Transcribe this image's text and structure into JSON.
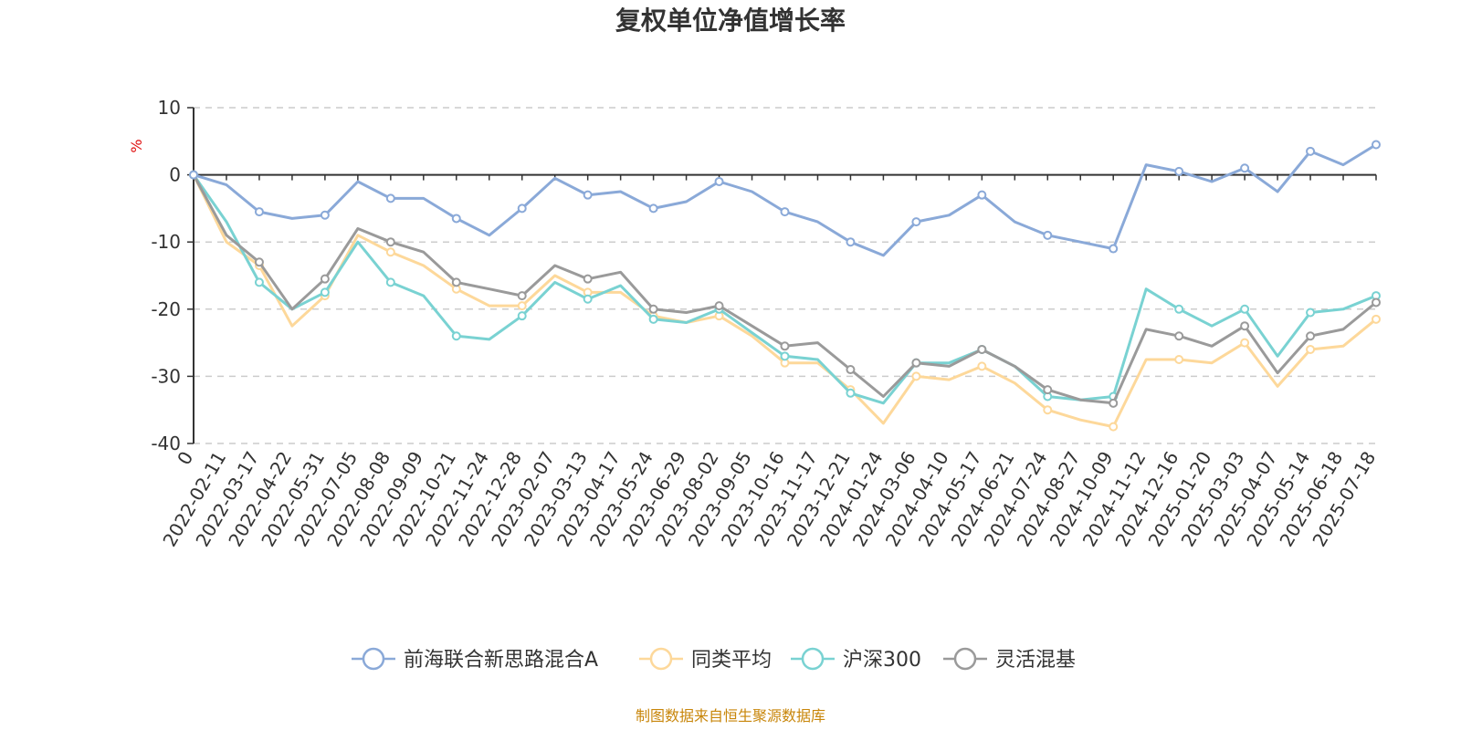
{
  "chart_data": {
    "type": "line",
    "title": "复权单位净值增长率",
    "ylabel": "%",
    "ylim": [
      -40,
      10
    ],
    "yticks": [
      10,
      0,
      -10,
      -20,
      -30,
      -40
    ],
    "grid": true,
    "legend_position": "bottom",
    "x_tick_labels": [
      "0",
      "2022-02-11",
      "2022-03-17",
      "2022-04-22",
      "2022-05-31",
      "2022-07-05",
      "2022-08-08",
      "2022-09-09",
      "2022-10-21",
      "2022-11-24",
      "2022-12-28",
      "2023-02-07",
      "2023-03-13",
      "2023-04-17",
      "2023-05-24",
      "2023-06-29",
      "2023-08-02",
      "2023-09-05",
      "2023-10-16",
      "2023-11-17",
      "2023-12-21",
      "2024-01-24",
      "2024-03-06",
      "2024-04-10",
      "2024-05-17",
      "2024-06-21",
      "2024-07-24",
      "2024-08-27",
      "2024-10-09",
      "2024-11-12",
      "2024-12-16",
      "2025-01-20",
      "2025-03-03",
      "2025-04-07",
      "2025-05-14",
      "2025-06-18",
      "2025-07-18"
    ],
    "series": [
      {
        "name": "前海联合新思路混合A",
        "color": "#8aa9d8",
        "values": [
          0,
          -1.5,
          -5.5,
          -6.5,
          -6,
          -1,
          -3.5,
          -3.5,
          -6.5,
          -9,
          -5,
          -0.5,
          -3,
          -2.5,
          -5,
          -4,
          -1,
          -2.5,
          -5.5,
          -7,
          -10,
          -12,
          -7,
          -6,
          -3,
          -7,
          -9,
          -10,
          -11,
          1.5,
          0.5,
          -1,
          1,
          -2.5,
          3.5,
          1.5,
          4.5
        ]
      },
      {
        "name": "同类平均",
        "color": "#fdd89a",
        "values": [
          0,
          -10,
          -13.5,
          -22.5,
          -18,
          -9,
          -11.5,
          -13.5,
          -17,
          -19.5,
          -19.5,
          -15,
          -17.5,
          -17.5,
          -21,
          -22,
          -21,
          -24,
          -28,
          -28,
          -32,
          -37,
          -30,
          -30.5,
          -28.5,
          -31,
          -35,
          -36.5,
          -37.5,
          -27.5,
          -27.5,
          -28,
          -25,
          -31.5,
          -26,
          -25.5,
          -21.5
        ]
      },
      {
        "name": "沪深300",
        "color": "#79d2d2",
        "values": [
          0,
          -7,
          -16,
          -20,
          -17.5,
          -10,
          -16,
          -18,
          -24,
          -24.5,
          -21,
          -16,
          -18.5,
          -16.5,
          -21.5,
          -22,
          -20,
          -23.5,
          -27,
          -27.5,
          -32.5,
          -34,
          -28,
          -28,
          -26,
          -28.5,
          -33,
          -33.5,
          -33,
          -17,
          -20,
          -22.5,
          -20,
          -27,
          -20.5,
          -20,
          -18
        ]
      },
      {
        "name": "灵活混基",
        "color": "#9a9a9a",
        "values": [
          0,
          -9,
          -13,
          -20,
          -15.5,
          -8,
          -10,
          -11.5,
          -16,
          -17,
          -18,
          -13.5,
          -15.5,
          -14.5,
          -20,
          -20.5,
          -19.5,
          -22.5,
          -25.5,
          -25,
          -29,
          -33,
          -28,
          -28.5,
          -26,
          -28.5,
          -32,
          -33.5,
          -34,
          -23,
          -24,
          -25.5,
          -22.5,
          -29.5,
          -24,
          -23,
          -19
        ]
      }
    ]
  },
  "legend_items": [
    "前海联合新思路混合A",
    "同类平均",
    "沪深300",
    "灵活混基"
  ],
  "source_text": "制图数据来自恒生聚源数据库"
}
